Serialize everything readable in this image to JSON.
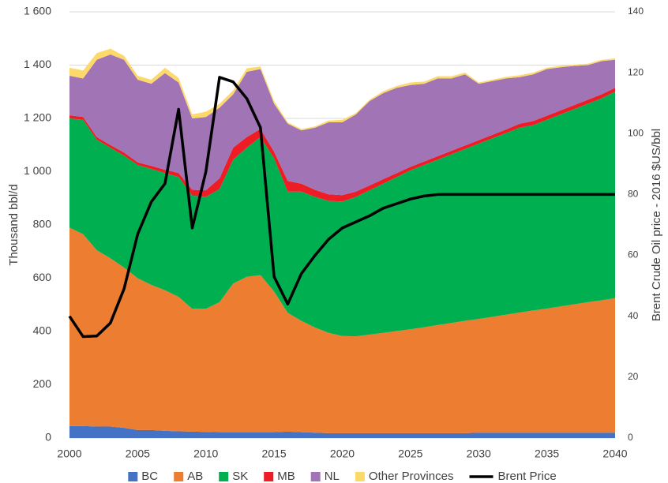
{
  "chart_data": {
    "type": "area",
    "stacked": true,
    "ylabel": "Thousand bbl/d",
    "y2label": "Brent Crude Oil price - 2016 $US/bbl",
    "x": [
      2000,
      2001,
      2002,
      2003,
      2004,
      2005,
      2006,
      2007,
      2008,
      2009,
      2010,
      2011,
      2012,
      2013,
      2014,
      2015,
      2016,
      2017,
      2018,
      2019,
      2020,
      2021,
      2022,
      2023,
      2024,
      2025,
      2026,
      2027,
      2028,
      2029,
      2030,
      2031,
      2032,
      2033,
      2034,
      2035,
      2036,
      2037,
      2038,
      2039,
      2040
    ],
    "xlim": [
      2000,
      2040
    ],
    "xticks": [
      2000,
      2005,
      2010,
      2015,
      2020,
      2025,
      2030,
      2035,
      2040
    ],
    "ylim": [
      0,
      1600
    ],
    "yticks": [
      0,
      200,
      400,
      600,
      800,
      {
        "value": 1000,
        "label": "1 000"
      },
      {
        "value": 1200,
        "label": "1 200"
      },
      {
        "value": 1400,
        "label": "1 400"
      },
      {
        "value": 1600,
        "label": "1 600"
      }
    ],
    "y2lim": [
      0,
      140
    ],
    "y2ticks": [
      0,
      20,
      40,
      60,
      80,
      100,
      120,
      140
    ],
    "grid": true,
    "legend": "bottom",
    "series": [
      {
        "name": "BC",
        "color": "#4472c4",
        "values": [
          45,
          45,
          43,
          43,
          38,
          30,
          30,
          27,
          25,
          24,
          23,
          22,
          22,
          22,
          22,
          22,
          24,
          22,
          20,
          18,
          18,
          18,
          18,
          18,
          18,
          18,
          18,
          18,
          18,
          18,
          20,
          20,
          20,
          20,
          20,
          20,
          20,
          20,
          20,
          20,
          20
        ]
      },
      {
        "name": "AB",
        "color": "#ed7d31",
        "values": [
          745,
          720,
          662,
          632,
          602,
          570,
          545,
          528,
          505,
          461,
          462,
          488,
          558,
          583,
          590,
          528,
          446,
          418,
          395,
          377,
          365,
          364,
          370,
          377,
          384,
          390,
          398,
          406,
          414,
          422,
          427,
          435,
          443,
          451,
          459,
          466,
          474,
          482,
          490,
          497,
          505
        ]
      },
      {
        "name": "SK",
        "color": "#00b050",
        "values": [
          410,
          430,
          415,
          415,
          420,
          425,
          435,
          440,
          450,
          425,
          420,
          425,
          465,
          485,
          518,
          500,
          455,
          485,
          490,
          495,
          505,
          523,
          542,
          560,
          578,
          597,
          609,
          621,
          633,
          645,
          658,
          670,
          682,
          694,
          696,
          709,
          721,
          733,
          745,
          758,
          775
        ]
      },
      {
        "name": "MB",
        "color": "#ee1c25",
        "values": [
          12,
          10,
          10,
          10,
          12,
          10,
          12,
          12,
          15,
          22,
          25,
          40,
          45,
          40,
          30,
          25,
          40,
          30,
          27,
          25,
          24,
          20,
          18,
          17,
          15,
          13,
          13,
          13,
          13,
          13,
          13,
          13,
          13,
          15,
          15,
          15,
          15,
          15,
          15,
          15,
          15
        ]
      },
      {
        "name": "NL",
        "color": "#a074b5",
        "values": [
          148,
          145,
          290,
          340,
          348,
          310,
          308,
          363,
          340,
          268,
          275,
          265,
          200,
          245,
          225,
          180,
          215,
          200,
          233,
          270,
          273,
          290,
          317,
          323,
          320,
          307,
          292,
          292,
          272,
          267,
          212,
          202,
          192,
          175,
          175,
          175,
          162,
          147,
          130,
          125,
          105
        ]
      },
      {
        "name": "Other Provinces",
        "color": "#fdd86a",
        "values": [
          30,
          30,
          25,
          22,
          15,
          15,
          15,
          20,
          17,
          15,
          20,
          15,
          15,
          13,
          10,
          10,
          5,
          5,
          5,
          7,
          10,
          5,
          5,
          7,
          7,
          10,
          8,
          8,
          8,
          7,
          5,
          5,
          6,
          7,
          7,
          5,
          5,
          5,
          5,
          5,
          5
        ]
      },
      {
        "name": "Brent Price",
        "color": "#000000",
        "type": "line",
        "axis": "y2",
        "values": [
          40,
          33.3,
          33.5,
          37.8,
          49,
          67,
          77.6,
          83.6,
          108,
          69,
          87.5,
          118.5,
          117,
          111.5,
          102,
          53,
          44,
          54,
          60,
          65.3,
          69,
          71,
          73,
          75.5,
          77,
          78.5,
          79.5,
          80,
          80,
          80,
          80,
          80,
          80,
          80,
          80,
          80,
          80,
          80,
          80,
          80,
          80
        ]
      }
    ]
  }
}
